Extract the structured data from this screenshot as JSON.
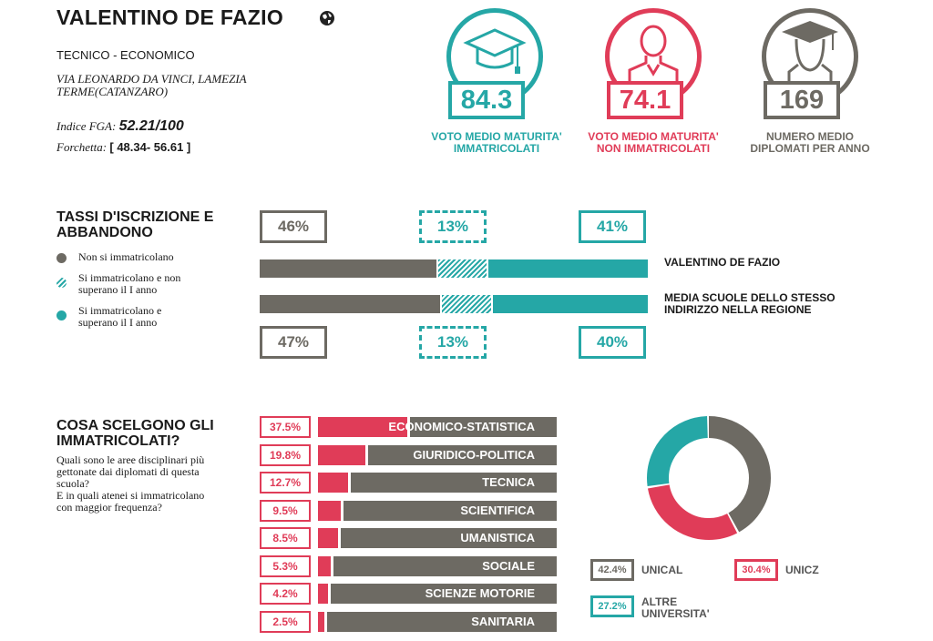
{
  "school": {
    "name": "VALENTINO DE FAZIO",
    "type": "TECNICO - ECONOMICO",
    "address": "VIA LEONARDO DA VINCI, LAMEZIA TERME(CATANZARO)",
    "fga_label": "Indice FGA:",
    "fga_value": "52.21/100",
    "range_label": "Forchetta:",
    "range_value": "[ 48.34- 56.61 ]"
  },
  "stats": [
    {
      "value": "84.3",
      "label_line1": "VOTO MEDIO MATURITA'",
      "label_line2": "IMMATRICOLATI",
      "color": "#25a7a6",
      "icon": "graduation-cap-icon"
    },
    {
      "value": "74.1",
      "label_line1": "VOTO MEDIO MATURITA'",
      "label_line2": "NON IMMATRICOLATI",
      "color": "#e03c58",
      "icon": "person-icon"
    },
    {
      "value": "169",
      "label_line1": "NUMERO MEDIO",
      "label_line2": "DIPLOMATI PER ANNO",
      "color": "#6d6a63",
      "icon": "graduate-person-icon"
    }
  ],
  "enrollment": {
    "title_line1": "TASSI D'ISCRIZIONE E",
    "title_line2": "ABBANDONO",
    "legend": [
      {
        "line1": "Non si immatricolano",
        "line2": "",
        "color": "#6d6a63"
      },
      {
        "line1": "Si immatricolano e non",
        "line2": "superano il I anno",
        "color": "#25a7a6",
        "hatched": true
      },
      {
        "line1": "Si immatricolano e",
        "line2": "superano il I anno",
        "color": "#25a7a6"
      }
    ],
    "school_row": {
      "label": "VALENTINO DE FAZIO",
      "values": [
        "46%",
        "13%",
        "41%"
      ]
    },
    "region_row": {
      "label_line1": "MEDIA SCUOLE DELLO STESSO",
      "label_line2": "INDIRIZZO NELLA REGIONE",
      "values": [
        "47%",
        "13%",
        "40%"
      ]
    }
  },
  "choices": {
    "title_line1": "COSA SCELGONO GLI",
    "title_line2": "IMMATRICOLATI?",
    "description": [
      "Quali sono le aree disciplinari più",
      "gettonate dai diplomati di questa",
      "scuola?",
      "E in quali atenei si immatricolano",
      "con maggior frequenza?"
    ],
    "universities": [
      {
        "pct": "42.4%",
        "name_line1": "UNICAL",
        "name_line2": "",
        "color": "#6d6a63"
      },
      {
        "pct": "30.4%",
        "name_line1": "UNICZ",
        "name_line2": "",
        "color": "#e03c58"
      },
      {
        "pct": "27.2%",
        "name_line1": "ALTRE",
        "name_line2": "UNIVERSITA'",
        "color": "#25a7a6"
      }
    ]
  },
  "chart_data": [
    {
      "type": "bar",
      "orientation": "horizontal-stacked",
      "categories": [
        "VALENTINO DE FAZIO",
        "MEDIA SCUOLE DELLO STESSO INDIRIZZO NELLA REGIONE"
      ],
      "series": [
        {
          "name": "Non si immatricolano",
          "values": [
            46,
            47
          ],
          "color": "#6d6a63"
        },
        {
          "name": "Si immatricolano e non superano il I anno",
          "values": [
            13,
            13
          ],
          "color": "#25a7a6"
        },
        {
          "name": "Si immatricolano e superano il I anno",
          "values": [
            41,
            40
          ],
          "color": "#25a7a6"
        }
      ]
    },
    {
      "type": "bar",
      "orientation": "horizontal",
      "categories": [
        "ECONOMICO-STATISTICA",
        "GIURIDICO-POLITICA",
        "TECNICA",
        "SCIENTIFICA",
        "UMANISTICA",
        "SOCIALE",
        "SCIENZE MOTORIE",
        "SANITARIA"
      ],
      "values": [
        37.5,
        19.8,
        12.7,
        9.5,
        8.5,
        5.3,
        4.2,
        2.5
      ],
      "value_labels": [
        "37.5%",
        "19.8%",
        "12.7%",
        "9.5%",
        "8.5%",
        "5.3%",
        "4.2%",
        "2.5%"
      ],
      "color": "#e03c58",
      "max": 100
    },
    {
      "type": "pie",
      "style": "donut",
      "labels": [
        "UNICAL",
        "UNICZ",
        "ALTRE UNIVERSITA'"
      ],
      "values": [
        42.4,
        30.4,
        27.2
      ],
      "colors": [
        "#6d6a63",
        "#e03c58",
        "#25a7a6"
      ]
    }
  ]
}
